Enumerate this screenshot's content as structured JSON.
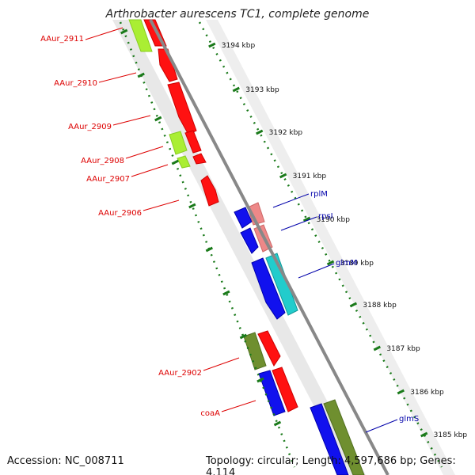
{
  "title": "Arthrobacter aurescens TC1, complete genome",
  "accession": "Accession: NC_008711",
  "summary": "Topology: circular; Length: 4,597,686 bp; Genes: 4,114",
  "colors": {
    "ruler": "#1a7a1a",
    "backbone": "#888888",
    "red_label": "#dd0000",
    "blue_label": "#0000aa"
  },
  "ruler_labels": [
    "3194 kbp",
    "3193 kbp",
    "3192 kbp",
    "3191 kbp",
    "3190 kbp",
    "3189 kbp",
    "3188 kbp",
    "3187 kbp",
    "3186 kbp",
    "3185 kbp"
  ],
  "gene_labels_left": [
    "AAur_2911",
    "AAur_2910",
    "AAur_2909",
    "AAur_2908",
    "AAur_2907",
    "AAur_2906",
    "AAur_2902",
    "coaA"
  ],
  "gene_labels_right": [
    "rplM",
    "rpsI",
    "glmM",
    "glmS"
  ]
}
